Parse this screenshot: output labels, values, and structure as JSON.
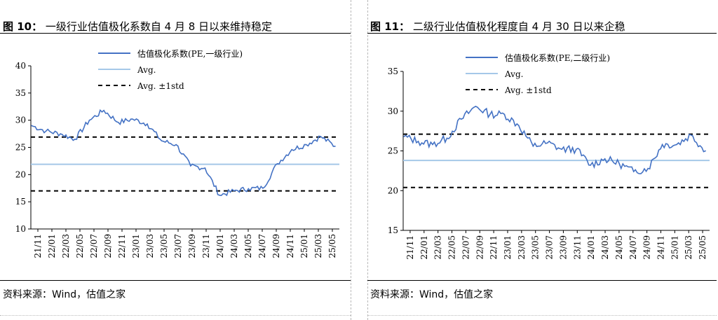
{
  "charts": [
    {
      "id": "left",
      "title_prefix": "图 10：",
      "title_text": "一级行业估值极化系数自 4 月 8 日以来维持稳定",
      "source": "资料来源：Wind，估值之家"
    },
    {
      "id": "right",
      "title_prefix": "图 11：",
      "title_text": "二级行业估值极化程度自 4 月 30 日以来企稳",
      "source": "资料来源：Wind，估值之家"
    }
  ],
  "chart_data": [
    {
      "type": "line",
      "series": [
        {
          "name": "估值极化系数(PE,一级行业)",
          "color": "#4472C4",
          "x": [
            "21/11",
            "22/01",
            "22/03",
            "22/05",
            "22/07",
            "22/09",
            "22/11",
            "23/01",
            "23/03",
            "23/05",
            "23/07",
            "23/09",
            "23/11",
            "24/01",
            "24/03",
            "24/05",
            "24/07",
            "24/09",
            "24/11",
            "25/01",
            "25/03",
            "25/05"
          ],
          "values": [
            29.0,
            28.0,
            27.5,
            26.5,
            30.0,
            31.8,
            29.6,
            30.2,
            29.3,
            26.2,
            25.5,
            21.6,
            21.2,
            16.2,
            17.0,
            17.4,
            17.5,
            22.0,
            24.6,
            25.5,
            27.0,
            25.2
          ]
        },
        {
          "name": "Avg.",
          "color": "#A5C8E8",
          "value": 21.9
        },
        {
          "name": "Avg. ±1std",
          "color": "#000000",
          "upper": 26.9,
          "lower": 17.0
        }
      ],
      "ylim": [
        10,
        40
      ],
      "yticks": [
        10,
        15,
        20,
        25,
        30,
        35,
        40
      ],
      "xticks": [
        "21/11",
        "22/01",
        "22/03",
        "22/05",
        "22/07",
        "22/09",
        "22/11",
        "23/01",
        "23/03",
        "23/05",
        "23/07",
        "23/09",
        "23/11",
        "24/01",
        "24/03",
        "24/05",
        "24/07",
        "24/09",
        "24/11",
        "25/01",
        "25/03",
        "25/05"
      ],
      "legend_labels": [
        "估值极化系数(PE,一级行业)",
        "Avg.",
        "Avg. ±1std"
      ],
      "legend_position": "top"
    },
    {
      "type": "line",
      "series": [
        {
          "name": "估值极化系数(PE,二级行业)",
          "color": "#4472C4",
          "x": [
            "21/11",
            "22/01",
            "22/03",
            "22/05",
            "22/07",
            "22/09",
            "22/11",
            "23/01",
            "23/03",
            "23/05",
            "23/07",
            "23/09",
            "23/11",
            "24/01",
            "24/03",
            "24/05",
            "24/07",
            "24/09",
            "24/11",
            "25/01",
            "25/03",
            "25/05"
          ],
          "values": [
            26.8,
            26.2,
            25.8,
            26.6,
            29.0,
            30.6,
            29.6,
            29.6,
            28.2,
            25.6,
            26.0,
            25.2,
            25.2,
            23.2,
            24.0,
            23.4,
            22.4,
            22.8,
            25.8,
            25.8,
            27.0,
            25.0
          ]
        },
        {
          "name": "Avg.",
          "color": "#A5C8E8",
          "value": 23.8
        },
        {
          "name": "Avg. ±1std",
          "color": "#000000",
          "upper": 27.1,
          "lower": 20.4
        }
      ],
      "ylim": [
        15,
        35
      ],
      "yticks": [
        15,
        20,
        25,
        30,
        35
      ],
      "xticks": [
        "21/11",
        "22/01",
        "22/03",
        "22/05",
        "22/07",
        "22/09",
        "22/11",
        "23/01",
        "23/03",
        "23/05",
        "23/07",
        "23/09",
        "23/11",
        "24/01",
        "24/03",
        "24/05",
        "24/07",
        "24/09",
        "24/11",
        "25/01",
        "25/03",
        "25/05"
      ],
      "legend_labels": [
        "估值极化系数(PE,二级行业)",
        "Avg.",
        "Avg. ±1std"
      ],
      "legend_position": "top"
    }
  ]
}
